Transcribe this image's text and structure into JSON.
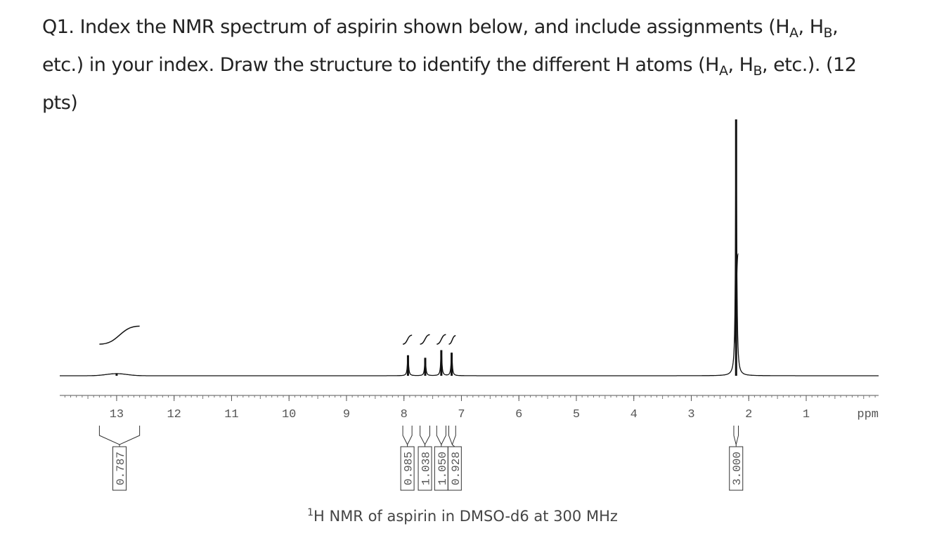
{
  "question": {
    "segments": [
      "Q1. Index the NMR spectrum of aspirin shown below, and include assignments (H",
      "A",
      ", H",
      "B",
      ", etc.) in your index.  Draw the structure to identify the different H atoms (H",
      "A",
      ", H",
      "B",
      ", etc.).  (12 pts)"
    ]
  },
  "spectrum": {
    "xlim": [
      13.99,
      -0.26
    ],
    "xticks": [
      13,
      12,
      11,
      10,
      9,
      8,
      7,
      6,
      5,
      4,
      3,
      2,
      1
    ],
    "xlabel": "ppm",
    "peaks": [
      {
        "ppm": 13.0,
        "height": 1
      },
      {
        "ppm": 7.93,
        "height": 8
      },
      {
        "ppm": 7.63,
        "height": 7
      },
      {
        "ppm": 7.35,
        "height": 10
      },
      {
        "ppm": 7.17,
        "height": 9
      },
      {
        "ppm": 2.22,
        "height": 100
      }
    ],
    "integrals": [
      {
        "label": "0.787",
        "from": 13.3,
        "to": 12.6
      },
      {
        "label": "0.985",
        "from": 8.02,
        "to": 7.86
      },
      {
        "label": "1.038",
        "from": 7.72,
        "to": 7.55
      },
      {
        "label": "1.050",
        "from": 7.43,
        "to": 7.27
      },
      {
        "label": "0.928",
        "from": 7.22,
        "to": 7.1
      },
      {
        "label": "3.000",
        "from": 2.26,
        "to": 2.18
      }
    ]
  },
  "caption": {
    "sup": "1",
    "text": "H NMR of aspirin in DMSO-d6 at 300 MHz"
  }
}
